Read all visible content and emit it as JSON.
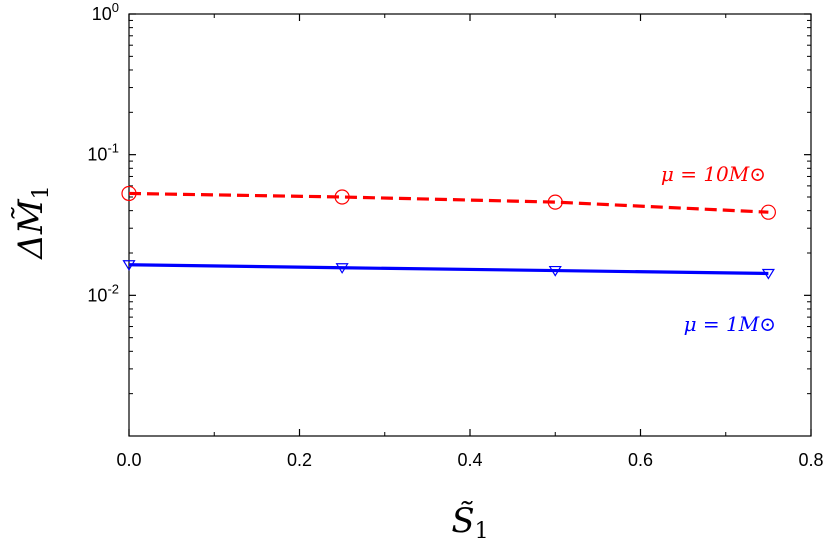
{
  "chart_data": {
    "type": "line",
    "title": "",
    "xlabel": "S̃",
    "xlabel_sub": "1",
    "ylabel": "ΔM̃",
    "ylabel_sub": "1",
    "xlim": [
      0.0,
      0.8
    ],
    "ylim": [
      0.001,
      1
    ],
    "yscale": "log",
    "xticks": [
      0.0,
      0.2,
      0.4,
      0.6,
      0.8
    ],
    "xtick_labels": [
      "0.0",
      "0.2",
      "0.4",
      "0.6",
      "0.8"
    ],
    "yticks": [
      {
        "value": 1,
        "base": "10",
        "exp": "0"
      },
      {
        "value": 0.1,
        "base": "10",
        "exp": "-1"
      },
      {
        "value": 0.01,
        "base": "10",
        "exp": "-2"
      }
    ],
    "grid": false,
    "series": [
      {
        "name": "μ = 10M⊙",
        "color": "#ff0000",
        "line_style": "dashed",
        "marker": "circle",
        "x": [
          0.0,
          0.25,
          0.5,
          0.75
        ],
        "y": [
          0.053,
          0.05,
          0.046,
          0.039
        ]
      },
      {
        "name": "μ = 1M⊙",
        "color": "#0000ff",
        "line_style": "solid",
        "marker": "triangle-down",
        "x": [
          0.0,
          0.25,
          0.5,
          0.75
        ],
        "y": [
          0.0165,
          0.0157,
          0.015,
          0.0143
        ]
      }
    ]
  }
}
